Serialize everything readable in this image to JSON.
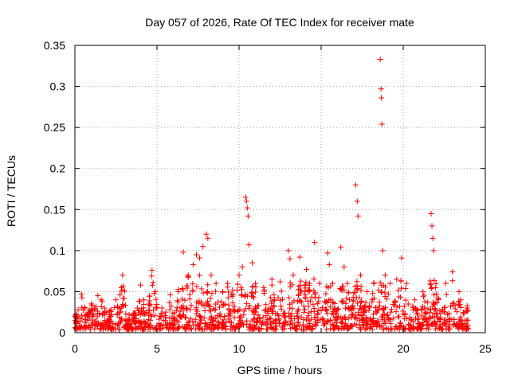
{
  "chart_data": {
    "type": "scatter",
    "title": "Day 057 of 2026, Rate Of TEC Index for receiver mate",
    "xlabel": "GPS time / hours",
    "ylabel": "ROTI / TECUs",
    "xlim": [
      0,
      25
    ],
    "ylim": [
      0,
      0.35
    ],
    "x_ticks": [
      "0",
      "5",
      "10",
      "15",
      "20",
      "25"
    ],
    "x_tick_values": [
      0,
      5,
      10,
      15,
      20,
      25
    ],
    "y_ticks": [
      "0",
      "0.05",
      "0.1",
      "0.15",
      "0.2",
      "0.25",
      "0.3",
      "0.35"
    ],
    "y_tick_values": [
      0,
      0.05,
      0.1,
      0.15,
      0.2,
      0.25,
      0.3,
      0.35
    ],
    "grid": true,
    "marker": "+",
    "marker_color": "#ff0000",
    "series": [
      {
        "name": "ROTI",
        "points": [
          [
            0.1,
            0.02
          ],
          [
            0.2,
            0.028
          ],
          [
            0.3,
            0.018
          ],
          [
            0.4,
            0.047
          ],
          [
            0.6,
            0.03
          ],
          [
            0.8,
            0.022
          ],
          [
            1.0,
            0.035
          ],
          [
            1.2,
            0.028
          ],
          [
            1.4,
            0.045
          ],
          [
            1.6,
            0.04
          ],
          [
            1.8,
            0.03
          ],
          [
            2.2,
            0.028
          ],
          [
            2.5,
            0.04
          ],
          [
            2.9,
            0.07
          ],
          [
            3.3,
            0.022
          ],
          [
            3.8,
            0.03
          ],
          [
            4.0,
            0.058
          ],
          [
            4.2,
            0.04
          ],
          [
            4.5,
            0.035
          ],
          [
            4.7,
            0.076
          ],
          [
            4.9,
            0.05
          ],
          [
            5.3,
            0.03
          ],
          [
            5.8,
            0.046
          ],
          [
            6.3,
            0.05
          ],
          [
            6.6,
            0.098
          ],
          [
            6.9,
            0.07
          ],
          [
            7.2,
            0.083
          ],
          [
            7.4,
            0.095
          ],
          [
            7.6,
            0.091
          ],
          [
            7.8,
            0.105
          ],
          [
            8.0,
            0.12
          ],
          [
            8.1,
            0.115
          ],
          [
            8.3,
            0.07
          ],
          [
            8.6,
            0.06
          ],
          [
            9.0,
            0.05
          ],
          [
            9.3,
            0.06
          ],
          [
            9.6,
            0.052
          ],
          [
            10.0,
            0.07
          ],
          [
            10.2,
            0.08
          ],
          [
            10.4,
            0.165
          ],
          [
            10.45,
            0.16
          ],
          [
            10.5,
            0.152
          ],
          [
            10.55,
            0.142
          ],
          [
            10.6,
            0.107
          ],
          [
            10.8,
            0.085
          ],
          [
            11.0,
            0.06
          ],
          [
            11.5,
            0.055
          ],
          [
            12.0,
            0.065
          ],
          [
            12.5,
            0.062
          ],
          [
            13.0,
            0.1
          ],
          [
            13.1,
            0.09
          ],
          [
            13.3,
            0.07
          ],
          [
            13.7,
            0.092
          ],
          [
            14.1,
            0.077
          ],
          [
            14.3,
            0.06
          ],
          [
            14.6,
            0.11
          ],
          [
            14.9,
            0.06
          ],
          [
            15.4,
            0.097
          ],
          [
            15.5,
            0.083
          ],
          [
            15.7,
            0.06
          ],
          [
            16.2,
            0.104
          ],
          [
            16.4,
            0.08
          ],
          [
            16.6,
            0.06
          ],
          [
            17.1,
            0.18
          ],
          [
            17.2,
            0.16
          ],
          [
            17.25,
            0.142
          ],
          [
            17.4,
            0.07
          ],
          [
            17.8,
            0.05
          ],
          [
            18.2,
            0.06
          ],
          [
            18.6,
            0.333
          ],
          [
            18.65,
            0.297
          ],
          [
            18.67,
            0.286
          ],
          [
            18.7,
            0.254
          ],
          [
            18.75,
            0.1
          ],
          [
            18.9,
            0.07
          ],
          [
            19.2,
            0.06
          ],
          [
            19.6,
            0.065
          ],
          [
            19.9,
            0.091
          ],
          [
            20.2,
            0.06
          ],
          [
            20.7,
            0.04
          ],
          [
            21.2,
            0.05
          ],
          [
            21.7,
            0.145
          ],
          [
            21.75,
            0.13
          ],
          [
            21.8,
            0.115
          ],
          [
            21.85,
            0.1
          ],
          [
            22.0,
            0.06
          ],
          [
            22.6,
            0.06
          ],
          [
            23.0,
            0.074
          ],
          [
            23.4,
            0.05
          ],
          [
            23.9,
            0.03
          ]
        ]
      }
    ]
  }
}
